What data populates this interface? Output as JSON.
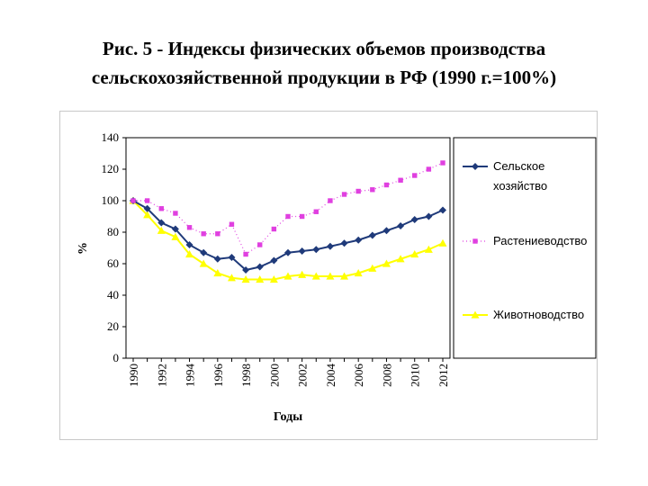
{
  "page": {
    "title_line1": "Рис. 5 - Индексы физических объемов производства",
    "title_line2": "сельскохозяйственной продукции в РФ (1990 г.=100%)"
  },
  "chart_data": {
    "type": "line",
    "xlabel": "Годы",
    "ylabel": "%",
    "ylim": [
      0,
      140
    ],
    "yticks": [
      0,
      20,
      40,
      60,
      80,
      100,
      120,
      140
    ],
    "x": [
      1990,
      1991,
      1992,
      1993,
      1994,
      1995,
      1996,
      1997,
      1998,
      1999,
      2000,
      2001,
      2002,
      2003,
      2004,
      2005,
      2006,
      2007,
      2008,
      2009,
      2010,
      2011,
      2012
    ],
    "xtick_labels": [
      "1990",
      "1992",
      "1994",
      "1996",
      "1998",
      "2000",
      "2002",
      "2004",
      "2006",
      "2008",
      "2010",
      "2012"
    ],
    "grid": false,
    "legend_position": "right",
    "series": [
      {
        "name": "Сельское хозяйство",
        "color": "#1f3a7a",
        "marker": "diamond",
        "line": "solid",
        "values": [
          100,
          95,
          86,
          82,
          72,
          67,
          63,
          64,
          56,
          58,
          62,
          67,
          68,
          69,
          71,
          73,
          75,
          78,
          81,
          84,
          88,
          90,
          94
        ]
      },
      {
        "name": "Растениеводство",
        "color": "#e040e0",
        "marker": "square",
        "line": "dotted",
        "values": [
          100,
          100,
          95,
          92,
          83,
          79,
          79,
          85,
          66,
          72,
          82,
          90,
          90,
          93,
          100,
          104,
          106,
          107,
          110,
          113,
          116,
          120,
          124
        ]
      },
      {
        "name": "Животноводство",
        "color": "#ffff00",
        "marker": "triangle",
        "line": "solid",
        "values": [
          100,
          91,
          81,
          77,
          66,
          60,
          54,
          51,
          50,
          50,
          50,
          52,
          53,
          52,
          52,
          52,
          54,
          57,
          60,
          63,
          66,
          69,
          73
        ]
      }
    ]
  }
}
